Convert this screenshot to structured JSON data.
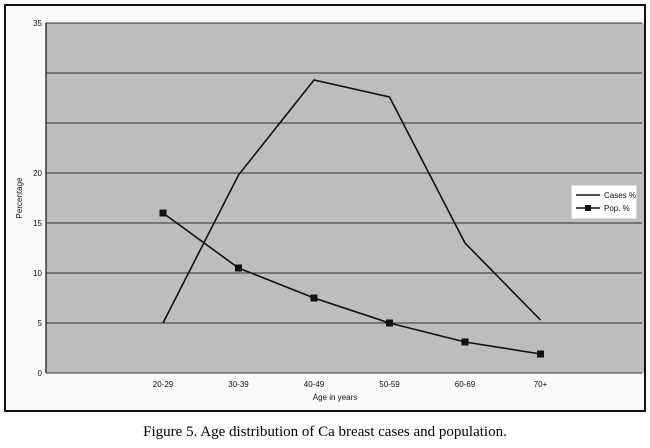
{
  "caption": "Figure 5. Age distribution of Ca breast cases and population.",
  "chart_data": {
    "type": "line",
    "xlabel": "Age in years",
    "ylabel": "Percentage",
    "categories": [
      "20-29",
      "30-39",
      "40-49",
      "50-59",
      "60-69",
      "70+"
    ],
    "y_tick_labels": [
      "0",
      "5",
      "10",
      "15",
      "20",
      "",
      "",
      "35"
    ],
    "ylim": [
      0,
      35
    ],
    "grid": true,
    "legend_position": "right",
    "series": [
      {
        "name": "Cases %",
        "marker": "none",
        "values": [
          5,
          19.8,
          29.3,
          27.6,
          13,
          5.3
        ]
      },
      {
        "name": "Pop. %",
        "marker": "square",
        "values": [
          16,
          10.5,
          7.5,
          5,
          3.1,
          1.9
        ]
      }
    ],
    "colors": {
      "line": "#111111",
      "plot_bg": "#bdbdbd",
      "grid": "#333333"
    }
  }
}
